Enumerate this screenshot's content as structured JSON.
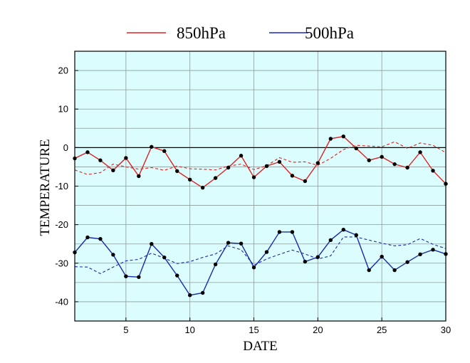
{
  "chart_data": {
    "type": "line",
    "xlabel": "DATE",
    "ylabel": "TEMPERATURE",
    "xlim": [
      1,
      30
    ],
    "ylim": [
      -45,
      25
    ],
    "x_ticks": [
      5,
      10,
      15,
      20,
      25,
      30
    ],
    "y_ticks": [
      -40,
      -30,
      -20,
      -10,
      0,
      10,
      20
    ],
    "grid": true,
    "zero_line": true,
    "plot_background": "#dcfdfd",
    "legend_position": "top",
    "x": [
      1,
      2,
      3,
      4,
      5,
      6,
      7,
      8,
      9,
      10,
      11,
      12,
      13,
      14,
      15,
      16,
      17,
      18,
      19,
      20,
      21,
      22,
      23,
      24,
      25,
      26,
      27,
      28,
      29,
      30
    ],
    "series": [
      {
        "name": "850hPa",
        "color": "#dd2222",
        "values": [
          -2.8,
          -1.2,
          -3.3,
          -5.9,
          -2.7,
          -7.4,
          0.2,
          -0.9,
          -6.1,
          -8.3,
          -10.4,
          -7.9,
          -5.2,
          -2.1,
          -7.7,
          -4.8,
          -3.7,
          -7.3,
          -8.7,
          -4.0,
          2.3,
          2.9,
          -0.2,
          -3.3,
          -2.4,
          -4.3,
          -5.2,
          -1.2,
          -6.0,
          -9.4
        ],
        "mean_values": [
          -5.8,
          -7.0,
          -6.5,
          -4.3,
          -5.0,
          -5.6,
          -5.2,
          -5.9,
          -4.8,
          -5.5,
          -5.6,
          -5.8,
          -4.8,
          -4.3,
          -5.7,
          -4.7,
          -2.6,
          -3.8,
          -3.7,
          -4.6,
          -2.8,
          -0.5,
          0.6,
          0.4,
          0.2,
          1.5,
          -0.2,
          1.2,
          0.6,
          -1.3
        ]
      },
      {
        "name": "500hPa",
        "color": "#1a2ab0",
        "values": [
          -27.2,
          -23.3,
          -23.7,
          -27.8,
          -33.4,
          -33.6,
          -25.0,
          -28.5,
          -33.2,
          -38.3,
          -37.7,
          -30.3,
          -24.7,
          -24.9,
          -31.1,
          -27.1,
          -21.9,
          -21.9,
          -29.6,
          -28.4,
          -24.0,
          -21.3,
          -22.7,
          -31.8,
          -28.3,
          -31.8,
          -29.7,
          -27.7,
          -26.5,
          -27.6
        ],
        "mean_values": [
          -30.9,
          -31.0,
          -32.7,
          -31.0,
          -29.4,
          -29.0,
          -27.4,
          -28.7,
          -30.1,
          -29.6,
          -28.5,
          -27.6,
          -25.5,
          -26.5,
          -30.5,
          -28.9,
          -27.7,
          -26.6,
          -27.6,
          -28.9,
          -28.1,
          -23.2,
          -23.2,
          -24.0,
          -24.8,
          -25.5,
          -25.2,
          -23.6,
          -25.1,
          -26.2
        ]
      }
    ]
  }
}
